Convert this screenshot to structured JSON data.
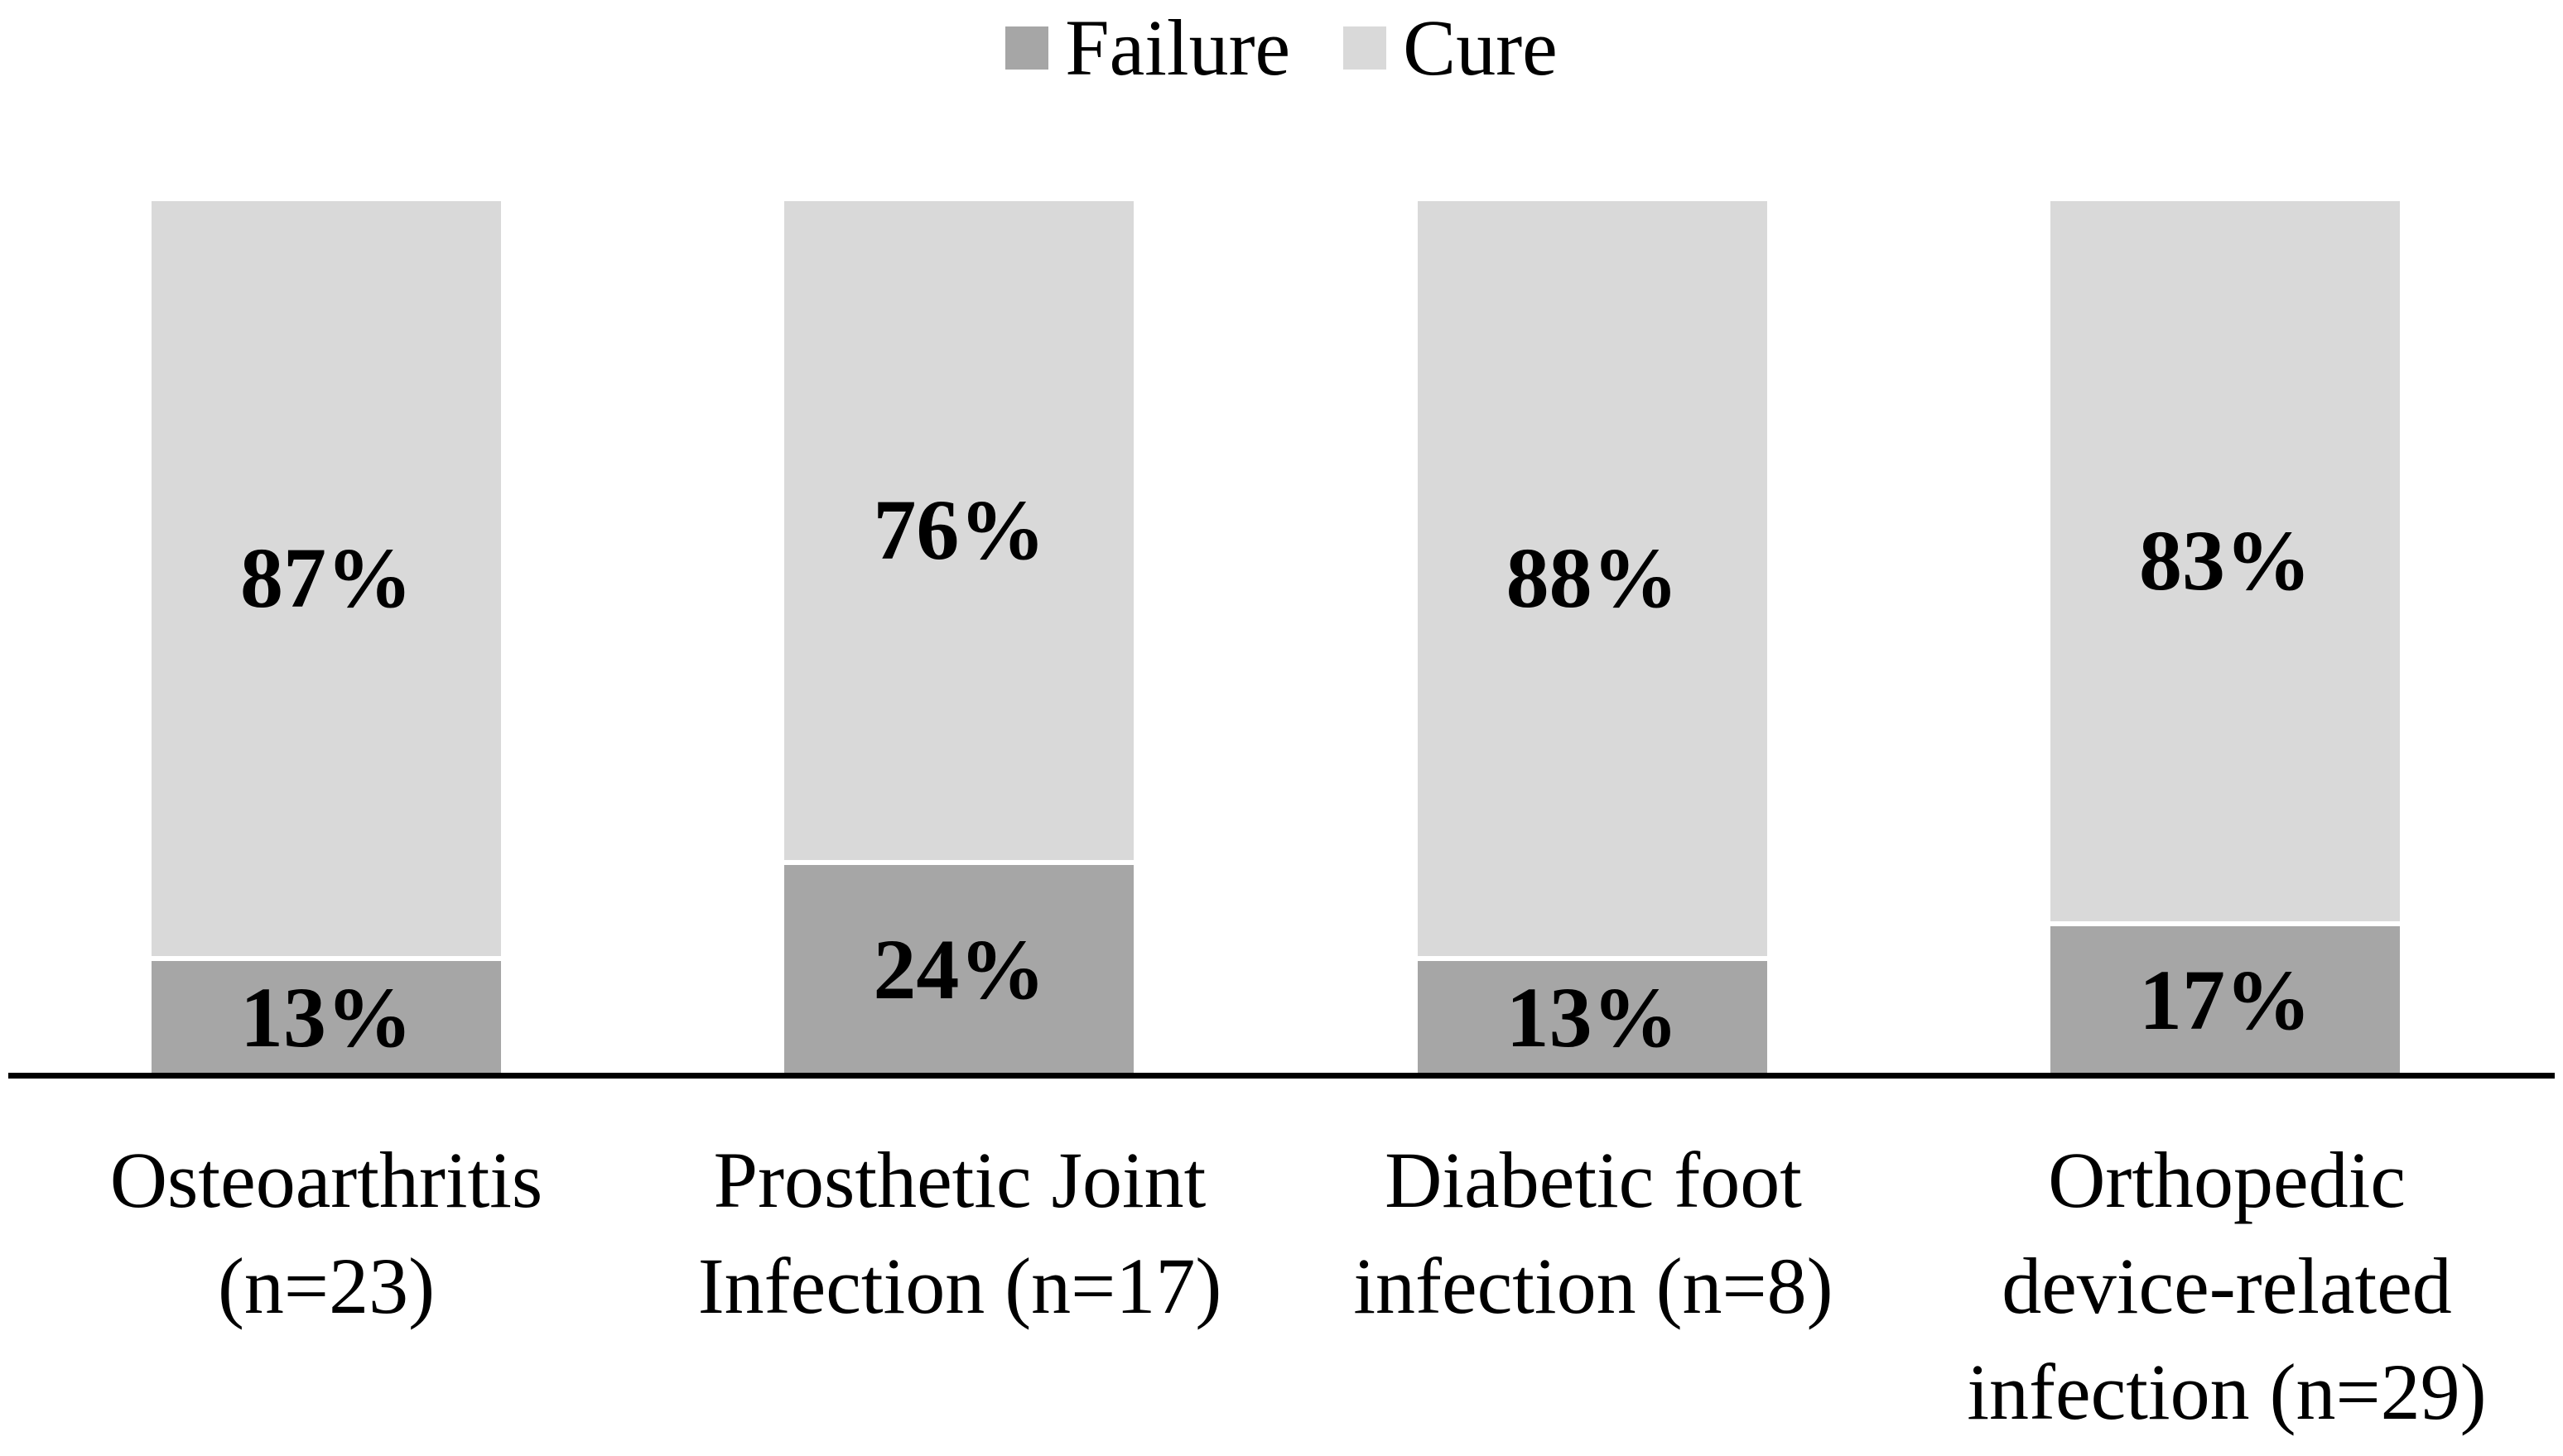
{
  "legend": {
    "items": [
      {
        "label": "Failure",
        "color": "#a6a6a6"
      },
      {
        "label": "Cure",
        "color": "#d9d9d9"
      }
    ]
  },
  "chart_data": {
    "type": "bar",
    "subtype": "stacked-100-percent",
    "orientation": "vertical",
    "title": "",
    "xlabel": "",
    "ylabel": "",
    "ylim": [
      0,
      100
    ],
    "grid": false,
    "legend_position": "top-center",
    "axis_line_color": "#000000",
    "background_color": "#ffffff",
    "categories": [
      "Osteoarthritis (n=23)",
      "Prosthetic Joint Infection (n=17)",
      "Diabetic foot infection (n=8)",
      "Orthopedic device-related infection (n=29)"
    ],
    "category_lines": [
      [
        "Osteoarthritis",
        "(n=23)"
      ],
      [
        "Prosthetic Joint",
        "Infection (n=17)"
      ],
      [
        "Diabetic foot",
        "infection (n=8)"
      ],
      [
        "Orthopedic",
        "device-related",
        "infection (n=29)"
      ]
    ],
    "series": [
      {
        "name": "Failure",
        "color": "#a6a6a6",
        "values": [
          13,
          24,
          13,
          17
        ],
        "labels": [
          "13%",
          "24%",
          "13%",
          "17%"
        ]
      },
      {
        "name": "Cure",
        "color": "#d9d9d9",
        "values": [
          87,
          76,
          88,
          83
        ],
        "labels": [
          "87%",
          "76%",
          "88%",
          "83%"
        ]
      }
    ]
  }
}
